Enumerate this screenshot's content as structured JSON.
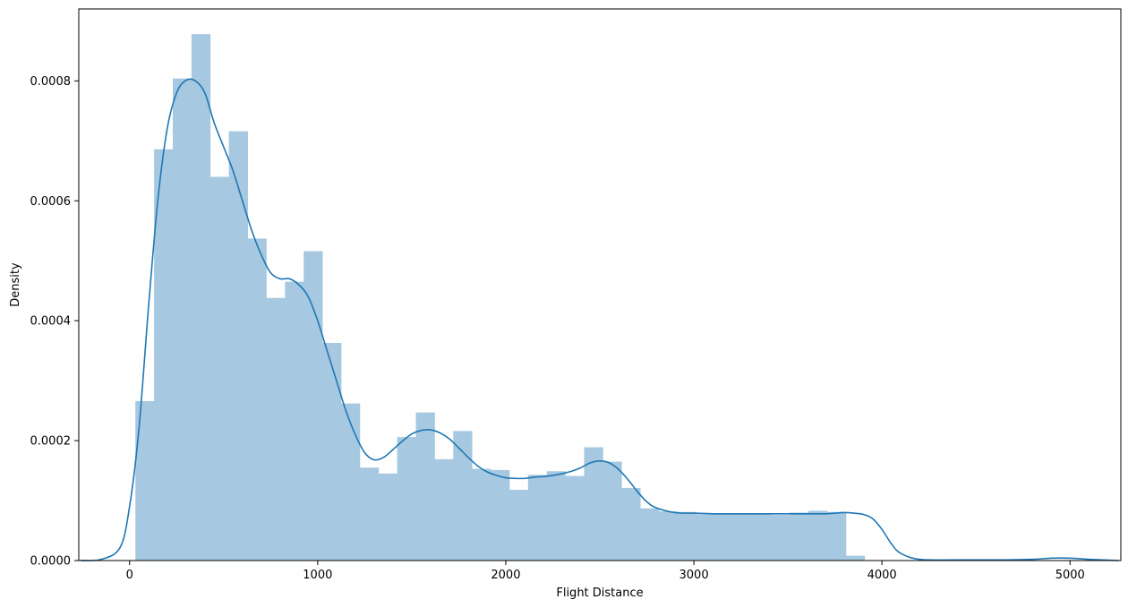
{
  "chart_data": {
    "type": "bar",
    "subtype": "histogram-with-kde",
    "xlabel": "Flight Distance",
    "ylabel": "Density",
    "xlim": [
      -270,
      5270
    ],
    "ylim": [
      0,
      0.00092
    ],
    "grid": false,
    "x_ticks": [
      0,
      1000,
      2000,
      3000,
      4000,
      5000
    ],
    "x_tick_labels": [
      "0",
      "1000",
      "2000",
      "3000",
      "4000",
      "5000"
    ],
    "y_ticks": [
      0,
      0.0002,
      0.0004,
      0.0006,
      0.0008
    ],
    "y_tick_labels": [
      "0.0000",
      "0.0002",
      "0.0004",
      "0.0006",
      "0.0008"
    ],
    "colors": {
      "bars": "#a6c8e0",
      "kde_line": "#1f77b4"
    },
    "bins": {
      "start": 31,
      "width": 99.4,
      "values": [
        0.000266,
        0.000686,
        0.000804,
        0.000878,
        0.00064,
        0.000716,
        0.000537,
        0.000438,
        0.000465,
        0.000516,
        0.000363,
        0.000262,
        0.000155,
        0.000145,
        0.000206,
        0.000247,
        0.000169,
        0.000216,
        0.000153,
        0.000151,
        0.000118,
        0.000143,
        0.000149,
        0.000141,
        0.000189,
        0.000165,
        0.000121,
        8.7e-05,
        8.2e-05,
        8.1e-05,
        7.7e-05,
        7.7e-05,
        7.9e-05,
        7.9e-05,
        7.6e-05,
        8e-05,
        8.3e-05,
        8.1e-05,
        8e-06
      ]
    },
    "kde": {
      "x": [
        -260,
        -150,
        -50,
        0,
        50,
        100,
        150,
        200,
        250,
        300,
        350,
        400,
        450,
        500,
        550,
        600,
        650,
        700,
        750,
        800,
        850,
        900,
        950,
        1000,
        1050,
        1100,
        1150,
        1200,
        1250,
        1300,
        1350,
        1400,
        1450,
        1500,
        1550,
        1600,
        1650,
        1700,
        1750,
        1800,
        1850,
        1900,
        1950,
        2000,
        2050,
        2100,
        2150,
        2200,
        2250,
        2300,
        2350,
        2400,
        2450,
        2500,
        2550,
        2600,
        2650,
        2700,
        2750,
        2800,
        2900,
        3000,
        3100,
        3200,
        3300,
        3400,
        3500,
        3600,
        3700,
        3800,
        3850,
        3900,
        3950,
        4000,
        4050,
        4100,
        4200,
        4400,
        4600,
        4800,
        4900,
        5000,
        5100,
        5260
      ],
      "y": [
        0,
        2e-06,
        2.2e-05,
        9e-05,
        0.00022,
        0.00042,
        0.0006,
        0.00072,
        0.00078,
        0.000801,
        0.0008,
        0.00078,
        0.00073,
        0.00069,
        0.00065,
        0.0006,
        0.00055,
        0.00051,
        0.00048,
        0.00047,
        0.00047,
        0.00046,
        0.00044,
        0.0004,
        0.00035,
        0.0003,
        0.00025,
        0.00021,
        0.00018,
        0.000168,
        0.000172,
        0.000185,
        0.000199,
        0.000211,
        0.000217,
        0.000218,
        0.000213,
        0.000203,
        0.000188,
        0.000172,
        0.000158,
        0.000148,
        0.000142,
        0.000138,
        0.000137,
        0.000137,
        0.000139,
        0.00014,
        0.000142,
        0.000145,
        0.000149,
        0.000155,
        0.000163,
        0.000166,
        0.000163,
        0.000152,
        0.000135,
        0.000115,
        9.8e-05,
        8.8e-05,
        8e-05,
        7.9e-05,
        7.8e-05,
        7.8e-05,
        7.8e-05,
        7.8e-05,
        7.8e-05,
        7.8e-05,
        7.8e-05,
        8e-05,
        7.9e-05,
        7.7e-05,
        7e-05,
        5.2e-05,
        2.8e-05,
        1.2e-05,
        2e-06,
        1e-06,
        1e-06,
        2e-06,
        4e-06,
        4e-06,
        2e-06,
        0
      ]
    }
  }
}
